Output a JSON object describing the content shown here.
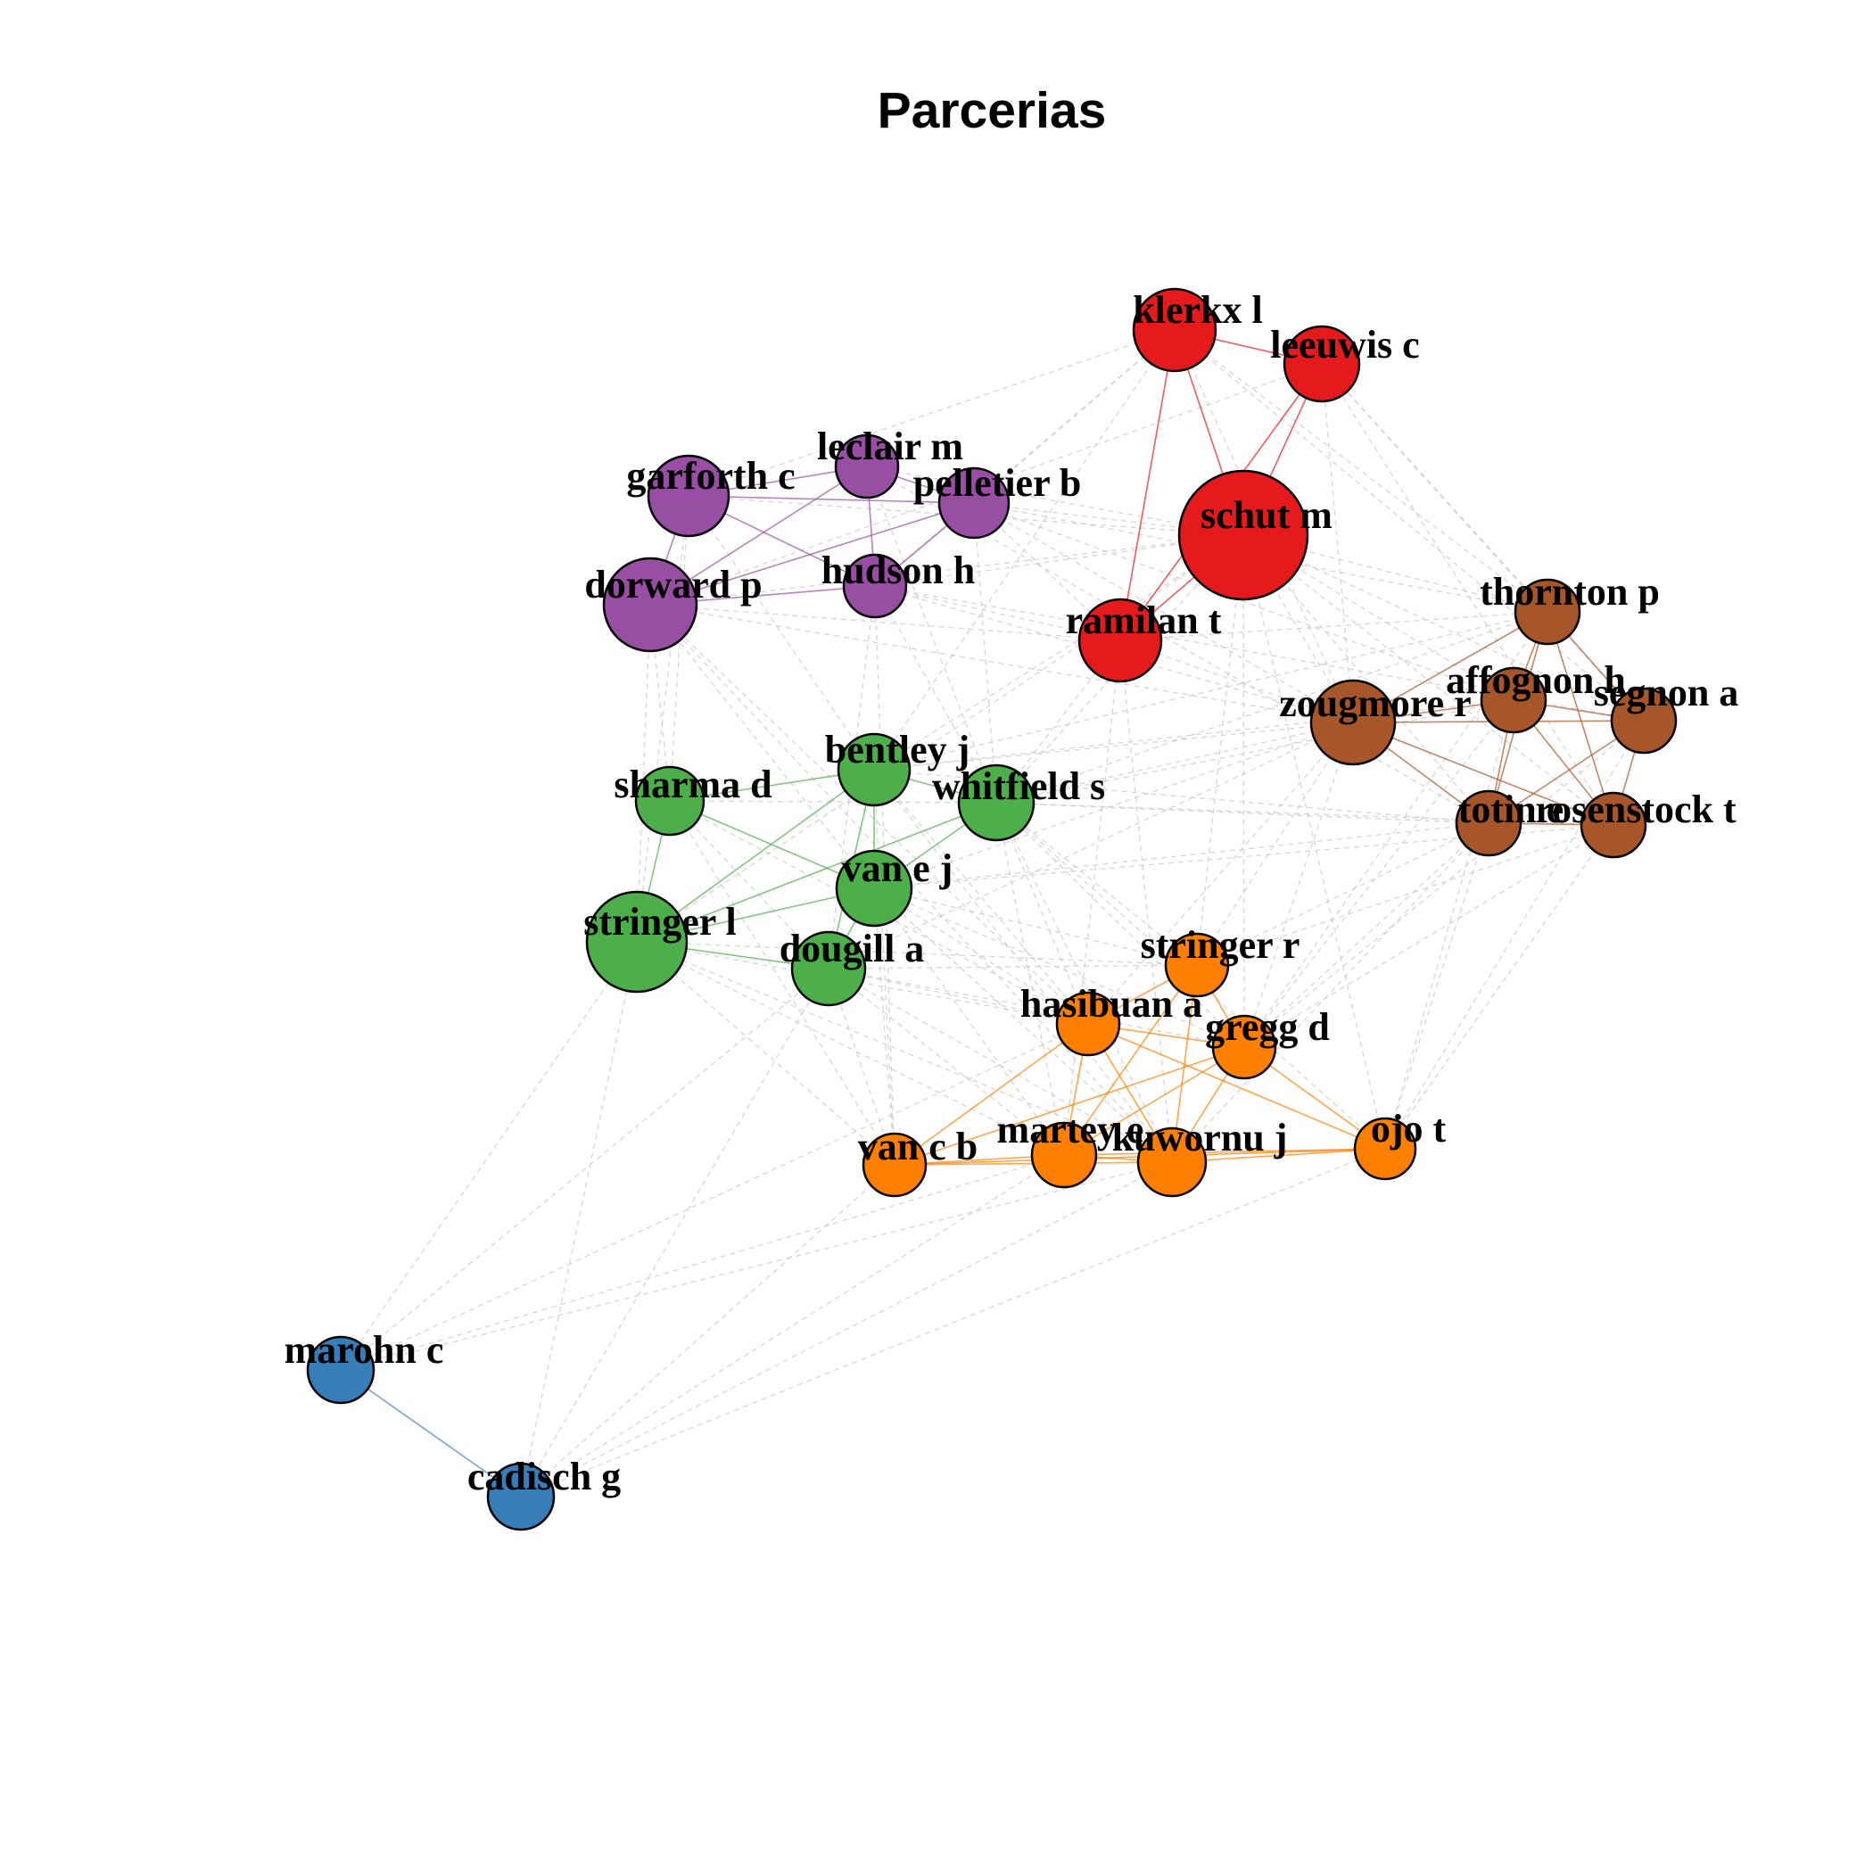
{
  "title": "Parcerias",
  "colors": {
    "red": "#E41A1C",
    "purple": "#984EA3",
    "green": "#4DAF4A",
    "brown": "#A65628",
    "orange": "#FF7F00",
    "blue": "#377EB8",
    "cross_edge": "#C8C8C8"
  },
  "nodes": [
    {
      "id": "klerkx",
      "label": "klerkx l",
      "group": "red"
    },
    {
      "id": "leeuwis",
      "label": "leeuwis c",
      "group": "red"
    },
    {
      "id": "schut",
      "label": "schut m",
      "group": "red"
    },
    {
      "id": "ramilan",
      "label": "ramilan t",
      "group": "red"
    },
    {
      "id": "leclair",
      "label": "leclair m",
      "group": "purple"
    },
    {
      "id": "garforth",
      "label": "garforth c",
      "group": "purple"
    },
    {
      "id": "pelletier",
      "label": "pelletier b",
      "group": "purple"
    },
    {
      "id": "dorward",
      "label": "dorward p",
      "group": "purple"
    },
    {
      "id": "hudson",
      "label": "hudson h",
      "group": "purple"
    },
    {
      "id": "thornton",
      "label": "thornton p",
      "group": "brown"
    },
    {
      "id": "affognon",
      "label": "affognon h",
      "group": "brown"
    },
    {
      "id": "zougmore",
      "label": "zougmore r",
      "group": "brown"
    },
    {
      "id": "segnon",
      "label": "segnon a",
      "group": "brown"
    },
    {
      "id": "totin",
      "label": "totin e",
      "group": "brown"
    },
    {
      "id": "rosenstock",
      "label": "rosenstock t",
      "group": "brown"
    },
    {
      "id": "bentley",
      "label": "bentley j",
      "group": "green"
    },
    {
      "id": "sharma",
      "label": "sharma d",
      "group": "green"
    },
    {
      "id": "whitfield",
      "label": "whitfield s",
      "group": "green"
    },
    {
      "id": "vanej",
      "label": "van e j",
      "group": "green"
    },
    {
      "id": "stringerl",
      "label": "stringer l",
      "group": "green"
    },
    {
      "id": "dougill",
      "label": "dougill a",
      "group": "green"
    },
    {
      "id": "stringerr",
      "label": "stringer r",
      "group": "orange"
    },
    {
      "id": "hasibuan",
      "label": "hasibuan a",
      "group": "orange"
    },
    {
      "id": "gregg",
      "label": "gregg d",
      "group": "orange"
    },
    {
      "id": "ojo",
      "label": "ojo t",
      "group": "orange"
    },
    {
      "id": "vancb",
      "label": "van c b",
      "group": "orange"
    },
    {
      "id": "martey",
      "label": "martey e",
      "group": "orange"
    },
    {
      "id": "kuwornu",
      "label": "kuwornu j",
      "group": "orange"
    },
    {
      "id": "marohn",
      "label": "marohn c",
      "group": "blue"
    },
    {
      "id": "cadisch",
      "label": "cadisch g",
      "group": "blue"
    }
  ],
  "intra_edges": [
    [
      "klerkx",
      "leeuwis"
    ],
    [
      "klerkx",
      "schut"
    ],
    [
      "klerkx",
      "ramilan"
    ],
    [
      "leeuwis",
      "schut"
    ],
    [
      "leeuwis",
      "ramilan"
    ],
    [
      "schut",
      "ramilan"
    ],
    [
      "leclair",
      "garforth"
    ],
    [
      "leclair",
      "pelletier"
    ],
    [
      "leclair",
      "dorward"
    ],
    [
      "leclair",
      "hudson"
    ],
    [
      "garforth",
      "pelletier"
    ],
    [
      "garforth",
      "dorward"
    ],
    [
      "garforth",
      "hudson"
    ],
    [
      "pelletier",
      "dorward"
    ],
    [
      "pelletier",
      "hudson"
    ],
    [
      "dorward",
      "hudson"
    ],
    [
      "thornton",
      "affognon"
    ],
    [
      "thornton",
      "zougmore"
    ],
    [
      "thornton",
      "segnon"
    ],
    [
      "thornton",
      "totin"
    ],
    [
      "thornton",
      "rosenstock"
    ],
    [
      "affognon",
      "zougmore"
    ],
    [
      "affognon",
      "segnon"
    ],
    [
      "affognon",
      "totin"
    ],
    [
      "affognon",
      "rosenstock"
    ],
    [
      "zougmore",
      "segnon"
    ],
    [
      "zougmore",
      "totin"
    ],
    [
      "zougmore",
      "rosenstock"
    ],
    [
      "segnon",
      "totin"
    ],
    [
      "segnon",
      "rosenstock"
    ],
    [
      "totin",
      "rosenstock"
    ],
    [
      "bentley",
      "sharma"
    ],
    [
      "bentley",
      "whitfield"
    ],
    [
      "bentley",
      "vanej"
    ],
    [
      "bentley",
      "stringerl"
    ],
    [
      "bentley",
      "dougill"
    ],
    [
      "sharma",
      "vanej"
    ],
    [
      "sharma",
      "stringerl"
    ],
    [
      "whitfield",
      "vanej"
    ],
    [
      "whitfield",
      "stringerl"
    ],
    [
      "vanej",
      "stringerl"
    ],
    [
      "stringerl",
      "dougill"
    ],
    [
      "vanej",
      "dougill"
    ],
    [
      "stringerr",
      "hasibuan"
    ],
    [
      "stringerr",
      "gregg"
    ],
    [
      "stringerr",
      "martey"
    ],
    [
      "stringerr",
      "kuwornu"
    ],
    [
      "hasibuan",
      "gregg"
    ],
    [
      "hasibuan",
      "ojo"
    ],
    [
      "hasibuan",
      "martey"
    ],
    [
      "hasibuan",
      "kuwornu"
    ],
    [
      "hasibuan",
      "vancb"
    ],
    [
      "gregg",
      "ojo"
    ],
    [
      "gregg",
      "martey"
    ],
    [
      "gregg",
      "kuwornu"
    ],
    [
      "gregg",
      "vancb"
    ],
    [
      "vancb",
      "martey"
    ],
    [
      "vancb",
      "kuwornu"
    ],
    [
      "vancb",
      "ojo"
    ],
    [
      "martey",
      "kuwornu"
    ],
    [
      "martey",
      "ojo"
    ],
    [
      "kuwornu",
      "ojo"
    ],
    [
      "marohn",
      "cadisch"
    ]
  ],
  "cross_edges": [
    [
      "klerkx",
      "garforth"
    ],
    [
      "klerkx",
      "pelletier"
    ],
    [
      "klerkx",
      "thornton"
    ],
    [
      "klerkx",
      "zougmore"
    ],
    [
      "klerkx",
      "segnon"
    ],
    [
      "klerkx",
      "bentley"
    ],
    [
      "klerkx",
      "hudson"
    ],
    [
      "leeuwis",
      "thornton"
    ],
    [
      "leeuwis",
      "segnon"
    ],
    [
      "leeuwis",
      "zougmore"
    ],
    [
      "leeuwis",
      "dorward"
    ],
    [
      "leeuwis",
      "rosenstock"
    ],
    [
      "schut",
      "thornton"
    ],
    [
      "schut",
      "zougmore"
    ],
    [
      "schut",
      "affognon"
    ],
    [
      "schut",
      "segnon"
    ],
    [
      "schut",
      "totin"
    ],
    [
      "schut",
      "rosenstock"
    ],
    [
      "schut",
      "dorward"
    ],
    [
      "schut",
      "hudson"
    ],
    [
      "schut",
      "pelletier"
    ],
    [
      "schut",
      "garforth"
    ],
    [
      "schut",
      "whitfield"
    ],
    [
      "schut",
      "bentley"
    ],
    [
      "schut",
      "stringerl"
    ],
    [
      "schut",
      "gregg"
    ],
    [
      "schut",
      "stringerr"
    ],
    [
      "schut",
      "ojo"
    ],
    [
      "ramilan",
      "hudson"
    ],
    [
      "ramilan",
      "pelletier"
    ],
    [
      "ramilan",
      "dorward"
    ],
    [
      "ramilan",
      "zougmore"
    ],
    [
      "ramilan",
      "thornton"
    ],
    [
      "ramilan",
      "whitfield"
    ],
    [
      "ramilan",
      "kuwornu"
    ],
    [
      "ramilan",
      "martey"
    ],
    [
      "pelletier",
      "zougmore"
    ],
    [
      "pelletier",
      "whitfield"
    ],
    [
      "pelletier",
      "thornton"
    ],
    [
      "pelletier",
      "affognon"
    ],
    [
      "hudson",
      "zougmore"
    ],
    [
      "hudson",
      "vancb"
    ],
    [
      "hudson",
      "dougill"
    ],
    [
      "hudson",
      "whitfield"
    ],
    [
      "hudson",
      "segnon"
    ],
    [
      "garforth",
      "sharma"
    ],
    [
      "garforth",
      "stringerl"
    ],
    [
      "garforth",
      "bentley"
    ],
    [
      "dorward",
      "sharma"
    ],
    [
      "dorward",
      "stringerl"
    ],
    [
      "dorward",
      "vanej"
    ],
    [
      "dorward",
      "zougmore"
    ],
    [
      "dorward",
      "hasibuan"
    ],
    [
      "dorward",
      "kuwornu"
    ],
    [
      "leclair",
      "whitfield"
    ],
    [
      "leclair",
      "schut"
    ],
    [
      "leclair",
      "totin"
    ],
    [
      "zougmore",
      "whitfield"
    ],
    [
      "zougmore",
      "vanej"
    ],
    [
      "zougmore",
      "bentley"
    ],
    [
      "zougmore",
      "stringerr"
    ],
    [
      "zougmore",
      "gregg"
    ],
    [
      "zougmore",
      "hasibuan"
    ],
    [
      "zougmore",
      "dougill"
    ],
    [
      "totin",
      "whitfield"
    ],
    [
      "totin",
      "bentley"
    ],
    [
      "totin",
      "vanej"
    ],
    [
      "totin",
      "stringerr"
    ],
    [
      "totin",
      "gregg"
    ],
    [
      "totin",
      "ojo"
    ],
    [
      "totin",
      "kuwornu"
    ],
    [
      "rosenstock",
      "ojo"
    ],
    [
      "rosenstock",
      "gregg"
    ],
    [
      "rosenstock",
      "stringerr"
    ],
    [
      "rosenstock",
      "vanej"
    ],
    [
      "rosenstock",
      "whitfield"
    ],
    [
      "affognon",
      "bentley"
    ],
    [
      "affognon",
      "whitfield"
    ],
    [
      "affognon",
      "ojo"
    ],
    [
      "affognon",
      "gregg"
    ],
    [
      "thornton",
      "whitfield"
    ],
    [
      "thornton",
      "bentley"
    ],
    [
      "thornton",
      "gregg"
    ],
    [
      "segnon",
      "gregg"
    ],
    [
      "segnon",
      "ojo"
    ],
    [
      "stringerl",
      "hasibuan"
    ],
    [
      "stringerl",
      "vancb"
    ],
    [
      "stringerl",
      "martey"
    ],
    [
      "stringerl",
      "kuwornu"
    ],
    [
      "stringerl",
      "stringerr"
    ],
    [
      "stringerl",
      "cadisch"
    ],
    [
      "stringerl",
      "marohn"
    ],
    [
      "dougill",
      "hasibuan"
    ],
    [
      "dougill",
      "vancb"
    ],
    [
      "dougill",
      "martey"
    ],
    [
      "dougill",
      "kuwornu"
    ],
    [
      "dougill",
      "stringerr"
    ],
    [
      "dougill",
      "gregg"
    ],
    [
      "dougill",
      "cadisch"
    ],
    [
      "dougill",
      "marohn"
    ],
    [
      "vanej",
      "hasibuan"
    ],
    [
      "vanej",
      "kuwornu"
    ],
    [
      "vanej",
      "martey"
    ],
    [
      "vanej",
      "gregg"
    ],
    [
      "vanej",
      "stringerr"
    ],
    [
      "vanej",
      "vancb"
    ],
    [
      "whitfield",
      "hasibuan"
    ],
    [
      "whitfield",
      "kuwornu"
    ],
    [
      "whitfield",
      "gregg"
    ],
    [
      "whitfield",
      "stringerr"
    ],
    [
      "whitfield",
      "martey"
    ],
    [
      "whitfield",
      "ojo"
    ],
    [
      "bentley",
      "vancb"
    ],
    [
      "bentley",
      "hasibuan"
    ],
    [
      "bentley",
      "kuwornu"
    ],
    [
      "sharma",
      "hasibuan"
    ],
    [
      "sharma",
      "vancb"
    ],
    [
      "sharma",
      "dougill"
    ],
    [
      "sharma",
      "whitfield"
    ],
    [
      "martey",
      "marohn"
    ],
    [
      "kuwornu",
      "marohn"
    ],
    [
      "kuwornu",
      "cadisch"
    ],
    [
      "ojo",
      "cadisch"
    ],
    [
      "vancb",
      "cadisch"
    ],
    [
      "martey",
      "cadisch"
    ],
    [
      "hasibuan",
      "marohn"
    ]
  ]
}
